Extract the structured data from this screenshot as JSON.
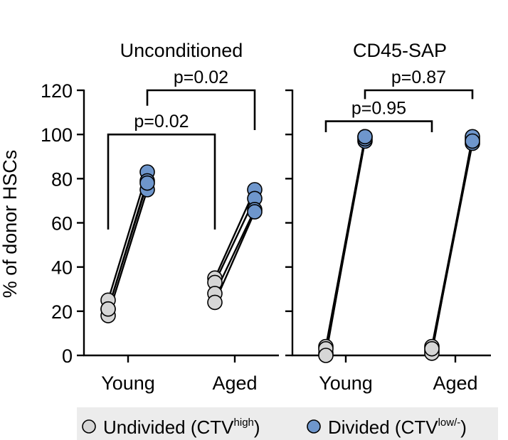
{
  "chart_data": {
    "type": "scatter",
    "ylabel": "% of donor HSCs",
    "ylim": [
      0,
      120
    ],
    "yticks": [
      "0",
      "20",
      "40",
      "60",
      "80",
      "100",
      "120"
    ],
    "categories": [
      "Young",
      "Aged"
    ],
    "legend": {
      "items": [
        {
          "label_main": "Undivided (CTV",
          "label_sup": "high",
          "label_end": ")",
          "color": "#d6d6d6"
        },
        {
          "label_main": "Divided (CTV",
          "label_sup": "low/-",
          "label_end": ")",
          "color": "#6e96cc"
        }
      ]
    },
    "colors": {
      "undivided": "#d6d6d6",
      "divided": "#6e96cc"
    },
    "panels": [
      {
        "title": "Unconditioned",
        "groups": [
          {
            "category": "Young",
            "undivided": [
              25,
              21,
              18,
              21
            ],
            "divided": [
              83,
              79,
              75,
              78
            ]
          },
          {
            "category": "Aged",
            "undivided": [
              35,
              33,
              28,
              24
            ],
            "divided": [
              75,
              71,
              66,
              65
            ]
          }
        ],
        "comparisons": [
          {
            "label": "p=0.02",
            "from": "Young",
            "to": "Aged",
            "series": "undivided",
            "y": 100
          },
          {
            "label": "p=0.02",
            "from": "Young",
            "to": "Aged",
            "series": "divided",
            "y": 120
          }
        ]
      },
      {
        "title": "CD45-SAP",
        "groups": [
          {
            "category": "Young",
            "undivided": [
              4,
              1,
              3,
              0
            ],
            "divided": [
              99,
              97,
              98,
              99
            ]
          },
          {
            "category": "Aged",
            "undivided": [
              4,
              2,
              1,
              3
            ],
            "divided": [
              98,
              96,
              99,
              97
            ]
          }
        ],
        "comparisons": [
          {
            "label": "p=0.95",
            "from": "Young",
            "to": "Aged",
            "series": "undivided",
            "y": 106
          },
          {
            "label": "p=0.87",
            "from": "Young",
            "to": "Aged",
            "series": "divided",
            "y": 120
          }
        ]
      }
    ]
  }
}
